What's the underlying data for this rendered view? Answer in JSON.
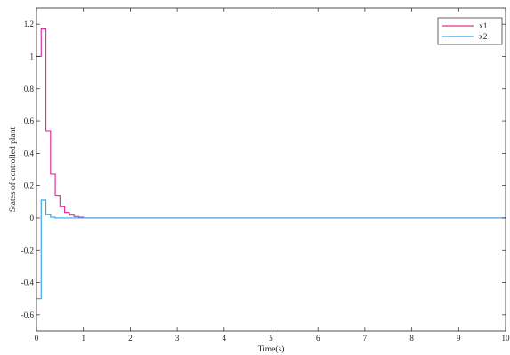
{
  "chart_data": {
    "type": "line",
    "title": "",
    "xlabel": "Time(s)",
    "ylabel": "States of controlled plant",
    "xlim": [
      0,
      10
    ],
    "ylim": [
      -0.7,
      1.3
    ],
    "xticks": [
      0,
      1,
      2,
      3,
      4,
      5,
      6,
      7,
      8,
      9,
      10
    ],
    "yticks": [
      -0.6,
      -0.4,
      -0.2,
      0,
      0.2,
      0.4,
      0.6,
      0.8,
      1,
      1.2
    ],
    "ytick_labels": [
      "-0.6",
      "-0.4",
      "-0.2",
      "0",
      "0.2",
      "0.4",
      "0.6",
      "0.8",
      "1",
      "1.2"
    ],
    "grid": false,
    "legend_position": "top-right",
    "series": [
      {
        "name": "x1",
        "color": "#e0339c",
        "step": true,
        "x": [
          0,
          0.1,
          0.2,
          0.3,
          0.4,
          0.5,
          0.6,
          0.7,
          0.8,
          0.9,
          1.0,
          10
        ],
        "y": [
          1,
          1.17,
          0.54,
          0.27,
          0.14,
          0.07,
          0.035,
          0.018,
          0.009,
          0.0045,
          0,
          0
        ]
      },
      {
        "name": "x2",
        "color": "#3aa6e6",
        "step": true,
        "x": [
          0,
          0.1,
          0.2,
          0.3,
          0.4,
          10
        ],
        "y": [
          -0.5,
          0.11,
          0.02,
          0.005,
          0,
          0
        ]
      }
    ]
  }
}
